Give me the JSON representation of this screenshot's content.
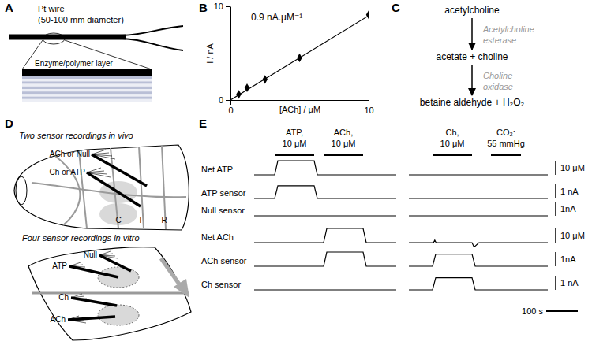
{
  "diagram_a": {
    "panel_label": "A",
    "wire_label": [
      "Pt wire",
      "(50-100 mm diameter)"
    ],
    "layer_label": "Enzyme/polymer layer"
  },
  "chart_data": {
    "panel_label": "B",
    "type": "scatter",
    "annotation": "0.9 nA.μM⁻¹",
    "x_label": "[ACh] / μM",
    "y_label": "I / nA",
    "xlim": [
      0,
      10
    ],
    "ylim": [
      0,
      10
    ],
    "xticks": [
      0,
      10
    ],
    "yticks": [
      0,
      10
    ],
    "grid": false,
    "series": [
      {
        "type": "scatter",
        "marker": "diamond",
        "color": "#000000",
        "x": [
          0.6,
          1.2,
          2.5,
          5,
          10
        ],
        "values": [
          0.6,
          1.3,
          2.2,
          4.5,
          9.1
        ]
      },
      {
        "type": "line",
        "color": "#000000",
        "x": [
          0,
          10
        ],
        "values": [
          0,
          9
        ]
      }
    ]
  },
  "scheme_c": {
    "panel_label": "C",
    "steps": [
      "acetylcholine",
      "acetate + choline",
      "betaine aldehyde + H₂O₂"
    ],
    "enzymes": [
      [
        "Acetylcholine",
        "esterase"
      ],
      [
        "Choline",
        "oxidase"
      ]
    ]
  },
  "diagram_d": {
    "panel_label": "D",
    "in_vivo": {
      "title": "Two sensor recordings in vivo",
      "probe_labels": [
        "ACh or Null",
        "Ch or ATP"
      ],
      "region_labels": [
        "C",
        "I",
        "R"
      ]
    },
    "in_vitro": {
      "title": "Four sensor recordings in vitro",
      "probe_labels": [
        "ATP",
        "Null",
        "Ch",
        "ACh"
      ]
    }
  },
  "recordings": {
    "panel_label": "E",
    "time_scale": {
      "value": 100,
      "label": "100 s"
    },
    "stimuli": [
      {
        "label": [
          "ATP,",
          "10 μM"
        ],
        "start": 65,
        "end": 190
      },
      {
        "label": [
          "ACh,",
          "10 μM"
        ],
        "start": 220,
        "end": 345
      },
      {
        "label": [
          "Ch,",
          "10 μM"
        ],
        "start": 565,
        "end": 690
      },
      {
        "label": [
          "CO₂:",
          "55 mmHg"
        ],
        "start": 750,
        "end": 845
      }
    ],
    "traces": [
      {
        "name": "Net ATP",
        "scale": {
          "value": 10,
          "label": "10 μM"
        },
        "x": [
          0,
          65,
          75,
          190,
          200,
          450,
          null,
          490,
          930
        ],
        "values": [
          0,
          0,
          10,
          10,
          0,
          0,
          null,
          0,
          0
        ]
      },
      {
        "name": "ATP sensor",
        "scale": {
          "value": 1,
          "label": "1 nA"
        },
        "x": [
          0,
          65,
          75,
          190,
          200,
          450,
          null,
          490,
          930
        ],
        "values": [
          0,
          0,
          0.9,
          0.9,
          0,
          0,
          null,
          0,
          0
        ]
      },
      {
        "name": "Null sensor",
        "scale": {
          "value": 1,
          "label": "1nA"
        },
        "x": [
          0,
          450,
          null,
          490,
          930
        ],
        "values": [
          0,
          0,
          null,
          0,
          0
        ]
      },
      {
        "name": "Net ACh",
        "scale": {
          "value": 10,
          "label": "10 μM"
        },
        "x": [
          0,
          220,
          230,
          345,
          355,
          450,
          null,
          490,
          568,
          572,
          576,
          580,
          690,
          695,
          700,
          712,
          930
        ],
        "values": [
          0,
          0,
          10,
          10,
          0,
          0,
          null,
          0,
          0,
          1.8,
          0,
          0,
          0,
          -2.5,
          -2.5,
          0,
          0
        ]
      },
      {
        "name": "ACh sensor",
        "scale": {
          "value": 1,
          "label": "1nA"
        },
        "x": [
          0,
          220,
          230,
          345,
          355,
          450,
          null,
          490,
          565,
          575,
          690,
          700,
          930
        ],
        "values": [
          0,
          0,
          1,
          1,
          0,
          0,
          null,
          0,
          0,
          0.85,
          0.85,
          0,
          0
        ]
      },
      {
        "name": "Ch sensor",
        "scale": {
          "value": 1,
          "label": "1 nA"
        },
        "x": [
          0,
          450,
          null,
          490,
          565,
          575,
          690,
          700,
          930
        ],
        "values": [
          0,
          0,
          null,
          0,
          0,
          0.85,
          0.85,
          0,
          0
        ]
      }
    ]
  }
}
